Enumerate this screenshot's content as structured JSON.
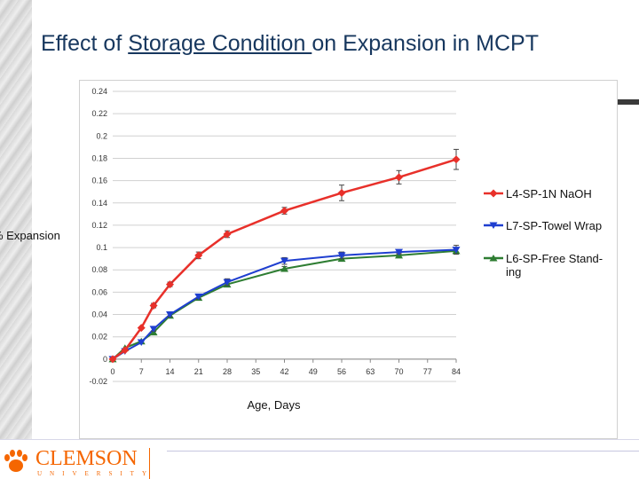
{
  "slide": {
    "title_pre": "Effect of ",
    "title_underline": "Storage Condition ",
    "title_post": "on Expansion in MCPT"
  },
  "logo": {
    "name": "CLEMSON",
    "sub": "UNIVERSITY",
    "icon": "tiger-paw-icon",
    "color": "#f56600"
  },
  "chart_data": {
    "type": "line",
    "xlabel": "Age, Days",
    "ylabel": "% Expansion",
    "x_ticks": [
      0,
      7,
      14,
      21,
      28,
      35,
      42,
      49,
      56,
      63,
      70,
      77,
      84
    ],
    "x_tick_labels": [
      "0",
      "7",
      "14",
      "21",
      "28",
      "35",
      "42",
      "49",
      "56",
      "63",
      "70",
      "77",
      "84"
    ],
    "y_tick_labels": [
      "-0.02",
      "0",
      "0.02",
      "0.04",
      "0.06",
      "0.08",
      "0.1",
      "0.12",
      "0.14",
      "0.16",
      "0.18",
      "0.2",
      "0.22",
      "0.24"
    ],
    "xlim": [
      0,
      84
    ],
    "ylim": [
      -0.02,
      0.24
    ],
    "grid": true,
    "legend_position": "right",
    "series": [
      {
        "name": "L4-SP-1N NaOH",
        "color": "#e8302a",
        "marker": "diamond",
        "x": [
          0,
          3,
          7,
          10,
          14,
          21,
          28,
          42,
          56,
          70,
          84
        ],
        "y": [
          0,
          0.008,
          0.028,
          0.048,
          0.067,
          0.093,
          0.112,
          0.133,
          0.149,
          0.163,
          0.179
        ],
        "err": [
          0,
          0,
          0,
          0.002,
          0.002,
          0.003,
          0.003,
          0.003,
          0.007,
          0.006,
          0.009
        ]
      },
      {
        "name": "L7-SP-Towel Wrap",
        "color": "#1f3fd0",
        "marker": "triangle-down",
        "x": [
          0,
          3,
          7,
          10,
          14,
          21,
          28,
          42,
          56,
          70,
          84
        ],
        "y": [
          0,
          0.007,
          0.015,
          0.027,
          0.04,
          0.056,
          0.069,
          0.088,
          0.093,
          0.096,
          0.098
        ],
        "err": [
          0,
          0,
          0,
          0.002,
          0.002,
          0.002,
          0.003,
          0.003,
          0.003,
          0.002,
          0.004
        ]
      },
      {
        "name": "L6-SP-Free Standing",
        "color": "#2e7d32",
        "marker": "triangle-up",
        "x": [
          0,
          3,
          7,
          10,
          14,
          21,
          28,
          42,
          56,
          70,
          84
        ],
        "y": [
          0,
          0.01,
          0.016,
          0.024,
          0.039,
          0.055,
          0.067,
          0.081,
          0.09,
          0.093,
          0.097
        ],
        "err": [
          0,
          0,
          0,
          0.001,
          0.002,
          0.002,
          0.002,
          0.002,
          0.002,
          0.002,
          0.002
        ]
      }
    ],
    "legend_labels": [
      [
        "L4-SP-1N NaOH"
      ],
      [
        "L7-SP-Towel Wrap"
      ],
      [
        "L6-SP-Free Stand-",
        "ing"
      ]
    ]
  }
}
